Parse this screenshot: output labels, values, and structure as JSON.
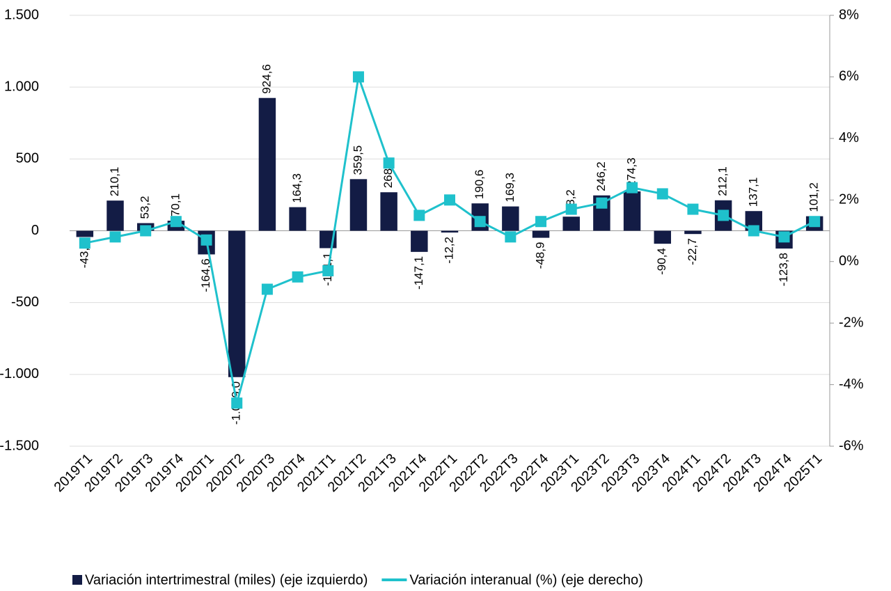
{
  "chart_data": {
    "type": "bar",
    "categories": [
      "2019T1",
      "2019T2",
      "2019T3",
      "2019T4",
      "2020T1",
      "2020T2",
      "2020T3",
      "2020T4",
      "2021T1",
      "2021T2",
      "2021T3",
      "2021T4",
      "2022T1",
      "2022T2",
      "2022T3",
      "2022T4",
      "2023T1",
      "2023T2",
      "2023T3",
      "2023T4",
      "2024T1",
      "2024T2",
      "2024T3",
      "2024T4",
      "2025T1"
    ],
    "series": [
      {
        "name": "Variación intertrimestral (miles) (eje izquierdo)",
        "type": "bar",
        "color": "#131c45",
        "values": [
          -43.4,
          210.1,
          53.2,
          70.1,
          -164.6,
          -1019.0,
          924.6,
          164.3,
          -121.1,
          359.5,
          268.1,
          -147.1,
          -12.2,
          190.6,
          169.3,
          -48.9,
          98.2,
          246.2,
          274.3,
          -90.4,
          -22.7,
          212.1,
          137.1,
          -123.8,
          101.2
        ],
        "value_labels": [
          "-43,4",
          "210,1",
          "53,2",
          "70,1",
          "-164,6",
          "-1.019,0",
          "924,6",
          "164,3",
          "-121,1",
          "359,5",
          "268,1",
          "-147,1",
          "-12,2",
          "190,6",
          "169,3",
          "-48,9",
          "98,2",
          "246,2",
          "274,3",
          "-90,4",
          "-22,7",
          "212,1",
          "137,1",
          "-123,8",
          "101,2"
        ]
      },
      {
        "name": "Variación interanual (%) (eje derecho)",
        "type": "line",
        "axis": "y2",
        "color": "#1fc1cc",
        "values": [
          0.6,
          0.8,
          1.0,
          1.3,
          0.7,
          -4.6,
          -0.9,
          -0.5,
          -0.3,
          6.0,
          3.2,
          1.5,
          2.0,
          1.3,
          0.8,
          1.3,
          1.7,
          1.9,
          2.4,
          2.2,
          1.7,
          1.5,
          1.0,
          0.8,
          1.3
        ]
      }
    ],
    "ylim": [
      -1500,
      1500
    ],
    "yticks": [
      {
        "value": 1500,
        "label": "1.500"
      },
      {
        "value": 1000,
        "label": "1.000"
      },
      500,
      0,
      -500,
      {
        "value": -1000,
        "label": "-1.000"
      },
      {
        "value": -1500,
        "label": "-1.500"
      }
    ],
    "y2lim": [
      -6,
      8
    ],
    "y2ticks": [
      {
        "value": 8,
        "label": "8%"
      },
      {
        "value": 6,
        "label": "6%"
      },
      {
        "value": 4,
        "label": "4%"
      },
      {
        "value": 2,
        "label": "2%"
      },
      {
        "value": 0,
        "label": "0%"
      },
      {
        "value": -2,
        "label": "-2%"
      },
      {
        "value": -4,
        "label": "-4%"
      },
      {
        "value": -6,
        "label": "-6%"
      }
    ],
    "grid": true,
    "legend": "bottom"
  }
}
